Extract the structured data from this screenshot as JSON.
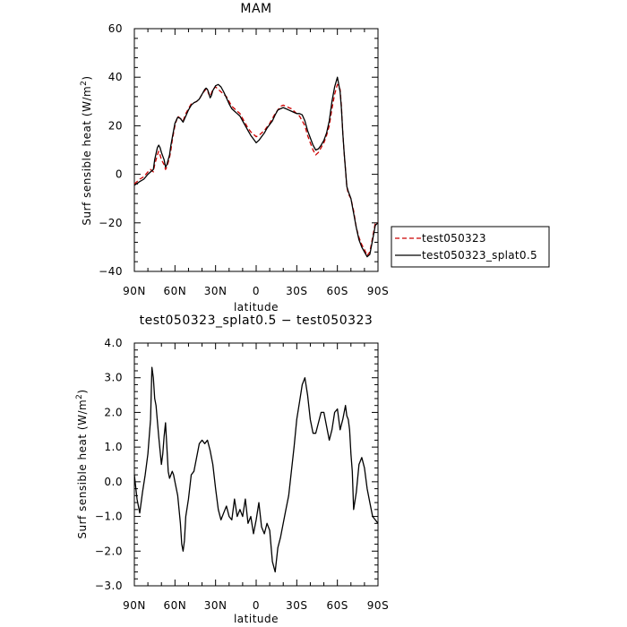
{
  "chart_data": [
    {
      "type": "line",
      "title": "MAM",
      "xlabel": "latitude",
      "ylabel": "Surf sensible heat (W/m",
      "ylabel_sup": "2",
      "ylabel_close": ")",
      "x_direction": "north-to-south",
      "xlim": [
        90,
        -90
      ],
      "ylim": [
        -40,
        60
      ],
      "x_ticks": [
        90,
        60,
        30,
        0,
        -30,
        -60,
        -90
      ],
      "x_tick_labels": [
        "90N",
        "60N",
        "30N",
        "0",
        "30S",
        "60S",
        "90S"
      ],
      "y_ticks": [
        -40,
        -20,
        0,
        20,
        40,
        60
      ],
      "y_tick_labels": [
        "−40",
        "−20",
        "0",
        "20",
        "40",
        "60"
      ],
      "legend_position": "right",
      "series": [
        {
          "name": "test050323",
          "color": "#cc0000",
          "dash": "dashed",
          "x": [
            90,
            86,
            83,
            80,
            78,
            76,
            75,
            73,
            72,
            71,
            70,
            68,
            67,
            66,
            65,
            64,
            63,
            62,
            61,
            60,
            58,
            56,
            54,
            52,
            50,
            48,
            46,
            44,
            42,
            40,
            38,
            37,
            36,
            35,
            34,
            33,
            32,
            31,
            30,
            28,
            26,
            24,
            22,
            20,
            18,
            16,
            14,
            12,
            10,
            8,
            6,
            4,
            2,
            0,
            -2,
            -4,
            -6,
            -8,
            -10,
            -12,
            -14,
            -16,
            -18,
            -20,
            -22,
            -24,
            -26,
            -28,
            -30,
            -32,
            -34,
            -36,
            -38,
            -40,
            -42,
            -44,
            -46,
            -48,
            -50,
            -52,
            -54,
            -56,
            -58,
            -60,
            -62,
            -63,
            -64,
            -65,
            -66,
            -67,
            -68,
            -70,
            -72,
            -74,
            -76,
            -78,
            -80,
            -82,
            -84,
            -86,
            -88,
            -90
          ],
          "y": [
            -4,
            -2,
            -1,
            1,
            2,
            1,
            4,
            8,
            9.5,
            8,
            6,
            4,
            2,
            3,
            5,
            7,
            10,
            14,
            17,
            20,
            24,
            23,
            22,
            25,
            27,
            29,
            29.5,
            30,
            31,
            33,
            34.5,
            35,
            34.5,
            33,
            32,
            33.5,
            35,
            35.5,
            36,
            35,
            34,
            33,
            32,
            30,
            28,
            27,
            26,
            25,
            23,
            21,
            19,
            17.5,
            16.5,
            15.5,
            16,
            17,
            18,
            19.5,
            21,
            23,
            25,
            26.5,
            28,
            28.5,
            28,
            27.5,
            27,
            26,
            25,
            24,
            22,
            20,
            16,
            13,
            10,
            8,
            9,
            11,
            13,
            16,
            20,
            27,
            33,
            37,
            35,
            28,
            17,
            9,
            2,
            -5,
            -8,
            -10,
            -15,
            -22,
            -26,
            -29,
            -31,
            -33.5,
            -32,
            -26,
            -20,
            -20
          ]
        },
        {
          "name": "test050323_splat0.5",
          "color": "#000000",
          "dash": "solid",
          "x": [
            90,
            86,
            83,
            80,
            78,
            76,
            75,
            73,
            72,
            71,
            70,
            68,
            67,
            66,
            65,
            64,
            63,
            62,
            61,
            60,
            58,
            56,
            54,
            52,
            50,
            48,
            46,
            44,
            42,
            40,
            38,
            37,
            36,
            35,
            34,
            33,
            32,
            31,
            30,
            28,
            26,
            24,
            22,
            20,
            18,
            16,
            14,
            12,
            10,
            8,
            6,
            4,
            2,
            0,
            -2,
            -4,
            -6,
            -8,
            -10,
            -12,
            -14,
            -16,
            -18,
            -20,
            -22,
            -24,
            -26,
            -28,
            -30,
            -32,
            -34,
            -36,
            -38,
            -40,
            -42,
            -44,
            -46,
            -48,
            -50,
            -52,
            -54,
            -56,
            -58,
            -60,
            -62,
            -63,
            -64,
            -65,
            -66,
            -67,
            -68,
            -70,
            -72,
            -74,
            -76,
            -78,
            -80,
            -82,
            -84,
            -86,
            -88,
            -90
          ],
          "y": [
            -4.5,
            -3,
            -2,
            0,
            1,
            2,
            6,
            11,
            12,
            11,
            9,
            6,
            3,
            4,
            6,
            8,
            12,
            15,
            18,
            21,
            23.5,
            23,
            21.5,
            24,
            26.5,
            28.5,
            29.5,
            30,
            31,
            33,
            35,
            35.5,
            35,
            33.5,
            31.5,
            32.5,
            34.5,
            35.5,
            36.5,
            37,
            36,
            34,
            31.5,
            29,
            27,
            26,
            25,
            24,
            22,
            20,
            18,
            16,
            14.5,
            13,
            14,
            15.5,
            17,
            19,
            20.5,
            22,
            24.5,
            26.5,
            27,
            27.5,
            27,
            26.5,
            26,
            25.5,
            25,
            25,
            24.5,
            22,
            18,
            15,
            12,
            10,
            10.5,
            12,
            14,
            17,
            22,
            30,
            36,
            40,
            34,
            27,
            17,
            9,
            2,
            -5,
            -7,
            -10,
            -16,
            -22,
            -27,
            -30,
            -32,
            -34,
            -33,
            -27,
            -21,
            -20
          ]
        }
      ]
    },
    {
      "type": "line",
      "title": "test050323_splat0.5 − test050323",
      "xlabel": "latitude",
      "ylabel": "Surf sensible heat (W/m",
      "ylabel_sup": "2",
      "ylabel_close": ")",
      "x_direction": "north-to-south",
      "xlim": [
        90,
        -90
      ],
      "ylim": [
        -3.0,
        4.0
      ],
      "x_ticks": [
        90,
        60,
        30,
        0,
        -30,
        -60,
        -90
      ],
      "x_tick_labels": [
        "90N",
        "60N",
        "30N",
        "0",
        "30S",
        "60S",
        "90S"
      ],
      "y_ticks": [
        -3,
        -2,
        -1,
        0,
        1,
        2,
        3,
        4
      ],
      "y_tick_labels": [
        "−3.0",
        "−2.0",
        "−1.0",
        "0.0",
        "1.0",
        "2.0",
        "3.0",
        "4.0"
      ],
      "series": [
        {
          "name": "",
          "color": "#000000",
          "dash": "solid",
          "x": [
            90,
            88,
            86,
            84,
            82,
            80,
            78,
            77,
            76,
            75,
            74,
            72,
            70,
            69,
            68,
            67,
            66,
            65,
            64,
            63,
            62,
            61,
            60,
            58,
            56,
            55,
            54,
            53,
            52,
            50,
            48,
            46,
            44,
            42,
            40,
            38,
            36,
            34,
            32,
            30,
            28,
            26,
            24,
            22,
            20,
            18,
            16,
            14,
            12,
            10,
            8,
            6,
            4,
            2,
            0,
            -2,
            -4,
            -6,
            -8,
            -10,
            -12,
            -14,
            -16,
            -18,
            -20,
            -22,
            -24,
            -26,
            -28,
            -30,
            -32,
            -34,
            -36,
            -38,
            -40,
            -42,
            -44,
            -46,
            -48,
            -50,
            -52,
            -54,
            -56,
            -58,
            -60,
            -62,
            -64,
            -66,
            -67,
            -68,
            -69,
            -70,
            -71,
            -72,
            -74,
            -76,
            -78,
            -80,
            -82,
            -84,
            -86,
            -88,
            -90
          ],
          "y": [
            0.2,
            -0.5,
            -0.9,
            -0.3,
            0.2,
            0.8,
            1.8,
            3.3,
            3.0,
            2.4,
            2.2,
            1.3,
            0.5,
            0.8,
            1.3,
            1.7,
            1.0,
            0.3,
            0.1,
            0.2,
            0.3,
            0.2,
            0.0,
            -0.4,
            -1.2,
            -1.8,
            -2.0,
            -1.7,
            -1.0,
            -0.5,
            0.2,
            0.3,
            0.7,
            1.1,
            1.2,
            1.1,
            1.2,
            0.9,
            0.5,
            -0.2,
            -0.8,
            -1.1,
            -0.9,
            -0.7,
            -1.0,
            -1.1,
            -0.5,
            -1.0,
            -0.8,
            -1.0,
            -0.5,
            -1.2,
            -1.0,
            -1.5,
            -1.1,
            -0.6,
            -1.3,
            -1.5,
            -1.2,
            -1.4,
            -2.3,
            -2.6,
            -1.9,
            -1.6,
            -1.2,
            -0.8,
            -0.4,
            0.3,
            1.0,
            1.8,
            2.3,
            2.8,
            3.0,
            2.5,
            1.8,
            1.4,
            1.4,
            1.7,
            2.0,
            2.0,
            1.6,
            1.2,
            1.5,
            2.0,
            2.1,
            1.5,
            1.8,
            2.2,
            1.9,
            1.8,
            1.5,
            0.8,
            0.3,
            -0.8,
            -0.3,
            0.5,
            0.7,
            0.4,
            -0.2,
            -0.6,
            -1.0,
            -1.1,
            -1.2
          ]
        }
      ]
    }
  ]
}
